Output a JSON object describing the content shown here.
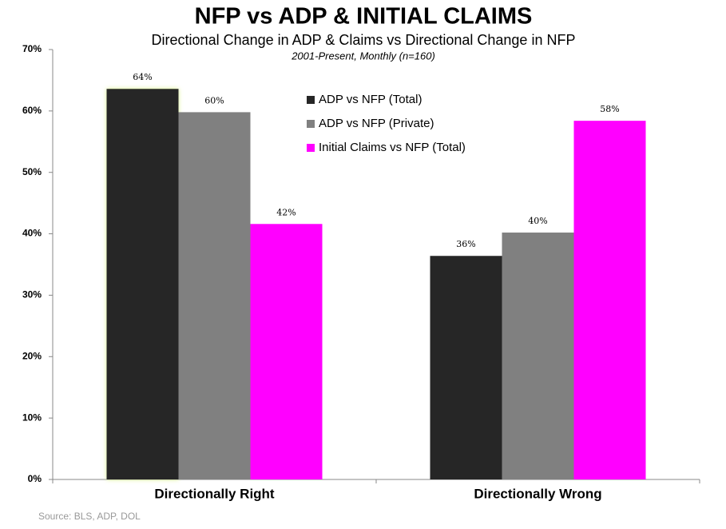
{
  "chart_data": {
    "type": "bar",
    "title": "NFP vs ADP & INITIAL CLAIMS",
    "subtitle": "Directional Change in ADP & Claims vs Directional Change in NFP",
    "note": "2001-Present, Monthly (n=160)",
    "source": "Source: BLS, ADP, DOL",
    "categories": [
      "Directionally Right",
      "Directionally Wrong"
    ],
    "series": [
      {
        "name": "ADP vs NFP (Total)",
        "color": "#262626",
        "values": [
          63.6,
          36.4
        ],
        "value_labels": [
          "64%",
          "36%"
        ]
      },
      {
        "name": "ADP vs NFP (Private)",
        "color": "#808080",
        "values": [
          59.8,
          40.2
        ],
        "value_labels": [
          "60%",
          "40%"
        ]
      },
      {
        "name": "Initial Claims vs NFP (Total)",
        "color": "#ff00ff",
        "values": [
          41.6,
          58.4
        ],
        "value_labels": [
          "42%",
          "58%"
        ]
      }
    ],
    "ylim": [
      0,
      70
    ],
    "yticks": [
      {
        "value": 0,
        "label": "0%"
      },
      {
        "value": 10,
        "label": "10%"
      },
      {
        "value": 20,
        "label": "20%"
      },
      {
        "value": 30,
        "label": "30%"
      },
      {
        "value": 40,
        "label": "40%"
      },
      {
        "value": 50,
        "label": "50%"
      },
      {
        "value": 60,
        "label": "60%"
      },
      {
        "value": 70,
        "label": "70%"
      }
    ],
    "grid": false
  }
}
